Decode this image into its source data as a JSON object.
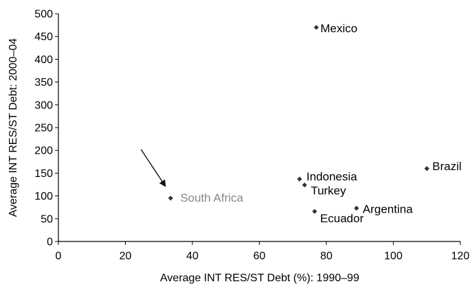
{
  "chart_data": {
    "type": "scatter",
    "xlabel": "Average INT RES/ST Debt (%): 1990–99",
    "ylabel": "Average INT RES/ST Debt: 2000–04",
    "xlim": [
      0,
      120
    ],
    "ylim": [
      0,
      500
    ],
    "xticks": [
      0,
      20,
      40,
      60,
      80,
      100,
      120
    ],
    "yticks": [
      0,
      50,
      100,
      150,
      200,
      250,
      300,
      350,
      400,
      450,
      500
    ],
    "grid": false,
    "highlight": "South Africa",
    "annotation": "arrow pointing to South Africa",
    "colors": {
      "point": "#333333",
      "label": "#000000",
      "highlight_label": "#888888",
      "axis": "#000000"
    },
    "points": [
      {
        "label": "Mexico",
        "x": 77,
        "y": 470
      },
      {
        "label": "Brazil",
        "x": 110,
        "y": 160
      },
      {
        "label": "Indonesia",
        "x": 72,
        "y": 137
      },
      {
        "label": "Turkey",
        "x": 73.5,
        "y": 124
      },
      {
        "label": "South Africa",
        "x": 33.5,
        "y": 95
      },
      {
        "label": "Argentina",
        "x": 89,
        "y": 73
      },
      {
        "label": "Ecuador",
        "x": 76.5,
        "y": 66
      }
    ]
  }
}
